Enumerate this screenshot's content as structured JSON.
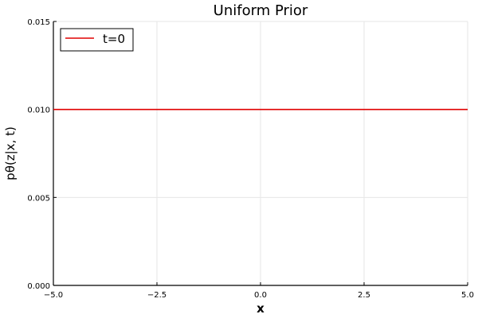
{
  "chart_data": {
    "type": "line",
    "title": "Uniform Prior",
    "xlabel": "x",
    "ylabel": "pθ(z|x, t)",
    "xlim": [
      -5.0,
      5.0
    ],
    "ylim": [
      0.0,
      0.015
    ],
    "x_ticks": [
      -5.0,
      -2.5,
      0.0,
      2.5,
      5.0
    ],
    "x_tick_labels": [
      "−5.0",
      "−2.5",
      "0.0",
      "2.5",
      "5.0"
    ],
    "y_ticks": [
      0.0,
      0.005,
      0.01,
      0.015
    ],
    "y_tick_labels": [
      "0.000",
      "0.005",
      "0.010",
      "0.015"
    ],
    "grid": true,
    "legend_position": "top-left",
    "series": [
      {
        "name": "t=0",
        "color": "#e00000",
        "x": [
          -5.0,
          5.0
        ],
        "y": [
          0.01,
          0.01
        ]
      }
    ]
  }
}
